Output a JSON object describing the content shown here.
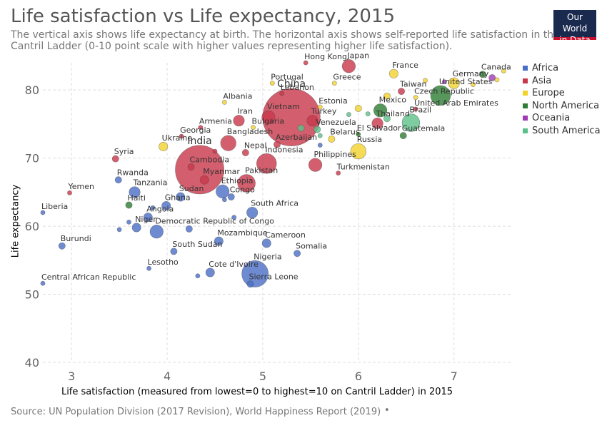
{
  "header": {
    "title": "Life satisfaction vs Life expectancy, 2015",
    "subtitle": "The vertical axis shows life expectancy at birth. The horizontal axis shows self-reported life satisfaction in the Cantril Ladder (0-10 point scale with higher values representing higher life satisfaction).",
    "logo_line1": "Our World",
    "logo_line2": "in Data"
  },
  "footer": {
    "source": "Source: UN Population Division (2017 Revision), World Happiness Report (2019)",
    "dot": "•"
  },
  "colors": {
    "Africa": "#4a6ec5",
    "Asia": "#c8374a",
    "Europe": "#f2d22c",
    "North America": "#2e7d32",
    "Oceania": "#a03bb5",
    "South America": "#5cc08a"
  },
  "chart_data": {
    "type": "scatter",
    "title": "Life satisfaction vs Life expectancy, 2015",
    "xlabel": "Life satisfaction (measured from lowest=0 to highest=10 on Cantril Ladder) in 2015",
    "ylabel": "Life expectancy",
    "xlim": [
      2.7,
      7.6
    ],
    "ylim": [
      40,
      84
    ],
    "xticks": [
      3,
      4,
      5,
      6,
      7
    ],
    "yticks": [
      40,
      50,
      60,
      70,
      80
    ],
    "grid": true,
    "legend_position": "right",
    "legend": [
      "Africa",
      "Asia",
      "Europe",
      "North America",
      "Oceania",
      "South America"
    ],
    "points": [
      {
        "label": "Hong Kong",
        "x": 5.45,
        "y": 84.0,
        "region": "Asia",
        "size": 2
      },
      {
        "label": "Japan",
        "x": 5.9,
        "y": 83.5,
        "region": "Asia",
        "size": 6
      },
      {
        "label": "Canada",
        "x": 7.3,
        "y": 82.3,
        "region": "North America",
        "size": 3
      },
      {
        "label": "France",
        "x": 6.37,
        "y": 82.4,
        "region": "Europe",
        "size": 4
      },
      {
        "label": "Greece",
        "x": 5.75,
        "y": 81.0,
        "region": "Europe",
        "size": 2
      },
      {
        "label": "Portugal",
        "x": 5.1,
        "y": 81.0,
        "region": "Europe",
        "size": 2
      },
      {
        "label": "Germany",
        "x": 7.0,
        "y": 81.0,
        "region": "Europe",
        "size": 5
      },
      {
        "label": "Taiwan",
        "x": 6.45,
        "y": 79.8,
        "region": "Asia",
        "size": 3
      },
      {
        "label": "Lebanon",
        "x": 5.2,
        "y": 79.5,
        "region": "Asia",
        "size": 2
      },
      {
        "label": "United States",
        "x": 6.86,
        "y": 79.2,
        "region": "North America",
        "size": 9
      },
      {
        "label": "Czech Republic",
        "x": 6.6,
        "y": 78.9,
        "region": "Europe",
        "size": 2
      },
      {
        "label": "Albania",
        "x": 4.6,
        "y": 78.2,
        "region": "Europe",
        "size": 2
      },
      {
        "label": "China",
        "x": 5.3,
        "y": 76.0,
        "region": "Asia",
        "size": 26
      },
      {
        "label": "Estonia",
        "x": 5.6,
        "y": 77.5,
        "region": "Europe",
        "size": 2
      },
      {
        "label": "Mexico",
        "x": 6.23,
        "y": 77.0,
        "region": "North America",
        "size": 6
      },
      {
        "label": "United Arab Emirates",
        "x": 6.6,
        "y": 77.2,
        "region": "Asia",
        "size": 2
      },
      {
        "label": "Iran",
        "x": 4.75,
        "y": 75.5,
        "region": "Asia",
        "size": 5
      },
      {
        "label": "Vietnam",
        "x": 5.06,
        "y": 76.0,
        "region": "Asia",
        "size": 6
      },
      {
        "label": "Turkey",
        "x": 5.52,
        "y": 75.5,
        "region": "Asia",
        "size": 5
      },
      {
        "label": "Brazil",
        "x": 6.55,
        "y": 75.2,
        "region": "South America",
        "size": 8
      },
      {
        "label": "Thailand",
        "x": 6.2,
        "y": 75.1,
        "region": "Asia",
        "size": 5
      },
      {
        "label": "Armenia",
        "x": 4.35,
        "y": 74.5,
        "region": "Asia",
        "size": 2
      },
      {
        "label": "Bulgaria",
        "x": 4.9,
        "y": 74.5,
        "region": "Europe",
        "size": 2
      },
      {
        "label": "Venezuela",
        "x": 5.57,
        "y": 74.2,
        "region": "South America",
        "size": 3
      },
      {
        "label": "El Salvador",
        "x": 6.0,
        "y": 73.5,
        "region": "North America",
        "size": 2
      },
      {
        "label": "Guatemala",
        "x": 6.47,
        "y": 73.3,
        "region": "North America",
        "size": 3
      },
      {
        "label": "Georgia",
        "x": 4.15,
        "y": 73.2,
        "region": "Asia",
        "size": 2
      },
      {
        "label": "Belarus",
        "x": 5.72,
        "y": 72.8,
        "region": "Europe",
        "size": 3
      },
      {
        "label": "Bangladesh",
        "x": 4.64,
        "y": 72.2,
        "region": "Asia",
        "size": 7
      },
      {
        "label": "Azerbaijan",
        "x": 5.15,
        "y": 72.0,
        "region": "Asia",
        "size": 3
      },
      {
        "label": "Ukraine",
        "x": 3.96,
        "y": 71.7,
        "region": "Europe",
        "size": 4
      },
      {
        "label": "Russia",
        "x": 6.0,
        "y": 71.0,
        "region": "Europe",
        "size": 7
      },
      {
        "label": "Nepal",
        "x": 4.82,
        "y": 70.8,
        "region": "Asia",
        "size": 3
      },
      {
        "label": "Indonesia",
        "x": 5.04,
        "y": 69.2,
        "region": "Asia",
        "size": 9
      },
      {
        "label": "Syria",
        "x": 3.46,
        "y": 69.9,
        "region": "Asia",
        "size": 3
      },
      {
        "label": "Philippines",
        "x": 5.55,
        "y": 69.0,
        "region": "Asia",
        "size": 6
      },
      {
        "label": "India",
        "x": 4.34,
        "y": 68.3,
        "region": "Asia",
        "size": 22
      },
      {
        "label": "Turkmenistan",
        "x": 5.79,
        "y": 67.8,
        "region": "Asia",
        "size": 2
      },
      {
        "label": "Cambodia",
        "x": 4.25,
        "y": 68.7,
        "region": "Asia",
        "size": 3
      },
      {
        "label": "Myanmar",
        "x": 4.39,
        "y": 66.8,
        "region": "Asia",
        "size": 4
      },
      {
        "label": "Pakistan",
        "x": 4.83,
        "y": 66.3,
        "region": "Asia",
        "size": 8
      },
      {
        "label": "Rwanda",
        "x": 3.49,
        "y": 66.8,
        "region": "Africa",
        "size": 3
      },
      {
        "label": "Tanzania",
        "x": 3.66,
        "y": 65.0,
        "region": "Africa",
        "size": 5
      },
      {
        "label": "Yemen",
        "x": 2.98,
        "y": 64.9,
        "region": "Asia",
        "size": 2
      },
      {
        "label": "Sudan",
        "x": 4.14,
        "y": 64.3,
        "region": "Africa",
        "size": 4
      },
      {
        "label": "Ethiopia",
        "x": 4.58,
        "y": 65.1,
        "region": "Africa",
        "size": 6
      },
      {
        "label": "Congo",
        "x": 4.67,
        "y": 64.3,
        "region": "Africa",
        "size": 3
      },
      {
        "label": "Haiti",
        "x": 3.6,
        "y": 63.1,
        "region": "North America",
        "size": 3
      },
      {
        "label": "Ghana",
        "x": 3.99,
        "y": 63.0,
        "region": "Africa",
        "size": 4
      },
      {
        "label": "Liberia",
        "x": 2.7,
        "y": 62.0,
        "region": "Africa",
        "size": 2
      },
      {
        "label": "Angola",
        "x": 3.8,
        "y": 61.3,
        "region": "Africa",
        "size": 4
      },
      {
        "label": "South Africa",
        "x": 4.89,
        "y": 62.0,
        "region": "Africa",
        "size": 5
      },
      {
        "label": "Niger",
        "x": 3.68,
        "y": 59.8,
        "region": "Africa",
        "size": 4
      },
      {
        "label": "Democratic Republic of Congo",
        "x": 3.89,
        "y": 59.2,
        "region": "Africa",
        "size": 6
      },
      {
        "label": "Burundi",
        "x": 2.9,
        "y": 57.1,
        "region": "Africa",
        "size": 3
      },
      {
        "label": "Mozambique",
        "x": 4.54,
        "y": 57.8,
        "region": "Africa",
        "size": 4
      },
      {
        "label": "Cameroon",
        "x": 5.04,
        "y": 57.5,
        "region": "Africa",
        "size": 4
      },
      {
        "label": "South Sudan",
        "x": 4.07,
        "y": 56.3,
        "region": "Africa",
        "size": 3
      },
      {
        "label": "Somalia",
        "x": 5.36,
        "y": 56.0,
        "region": "Africa",
        "size": 3
      },
      {
        "label": "Lesotho",
        "x": 3.81,
        "y": 53.8,
        "region": "Africa",
        "size": 2
      },
      {
        "label": "Cote d'Ivoire",
        "x": 4.45,
        "y": 53.2,
        "region": "Africa",
        "size": 4
      },
      {
        "label": "Nigeria",
        "x": 4.92,
        "y": 53.0,
        "region": "Africa",
        "size": 12
      },
      {
        "label": "Sierra Leone",
        "x": 4.87,
        "y": 51.5,
        "region": "Africa",
        "size": 3
      },
      {
        "label": "Central African Republic",
        "x": 2.7,
        "y": 51.6,
        "region": "Africa",
        "size": 2
      },
      {
        "label": "",
        "x": 7.45,
        "y": 81.5,
        "region": "Europe",
        "size": 2
      },
      {
        "label": "",
        "x": 7.52,
        "y": 82.8,
        "region": "Europe",
        "size": 2
      },
      {
        "label": "",
        "x": 7.4,
        "y": 81.8,
        "region": "Oceania",
        "size": 3
      },
      {
        "label": "",
        "x": 7.2,
        "y": 80.8,
        "region": "Europe",
        "size": 2
      },
      {
        "label": "",
        "x": 6.7,
        "y": 81.4,
        "region": "Europe",
        "size": 2
      },
      {
        "label": "",
        "x": 6.9,
        "y": 81.2,
        "region": "Oceania",
        "size": 2
      },
      {
        "label": "",
        "x": 6.3,
        "y": 79.1,
        "region": "Europe",
        "size": 3
      },
      {
        "label": "",
        "x": 6.0,
        "y": 77.3,
        "region": "Europe",
        "size": 3
      },
      {
        "label": "",
        "x": 6.1,
        "y": 76.5,
        "region": "South America",
        "size": 2
      },
      {
        "label": "",
        "x": 6.3,
        "y": 75.8,
        "region": "South America",
        "size": 3
      },
      {
        "label": "",
        "x": 5.9,
        "y": 76.4,
        "region": "South America",
        "size": 2
      },
      {
        "label": "",
        "x": 5.4,
        "y": 74.4,
        "region": "South America",
        "size": 3
      },
      {
        "label": "",
        "x": 5.6,
        "y": 71.9,
        "region": "Africa",
        "size": 2
      },
      {
        "label": "",
        "x": 5.6,
        "y": 73.3,
        "region": "South America",
        "size": 2
      },
      {
        "label": "",
        "x": 4.5,
        "y": 71.0,
        "region": "Asia",
        "size": 2
      },
      {
        "label": "",
        "x": 3.5,
        "y": 59.5,
        "region": "Africa",
        "size": 2
      },
      {
        "label": "",
        "x": 4.23,
        "y": 59.6,
        "region": "Africa",
        "size": 3
      },
      {
        "label": "",
        "x": 4.32,
        "y": 52.7,
        "region": "Africa",
        "size": 2
      },
      {
        "label": "",
        "x": 3.6,
        "y": 60.6,
        "region": "Africa",
        "size": 2
      },
      {
        "label": "",
        "x": 3.85,
        "y": 62.7,
        "region": "Africa",
        "size": 2
      },
      {
        "label": "",
        "x": 4.7,
        "y": 61.3,
        "region": "Africa",
        "size": 2
      },
      {
        "label": "",
        "x": 4.6,
        "y": 63.9,
        "region": "Africa",
        "size": 2
      }
    ]
  }
}
